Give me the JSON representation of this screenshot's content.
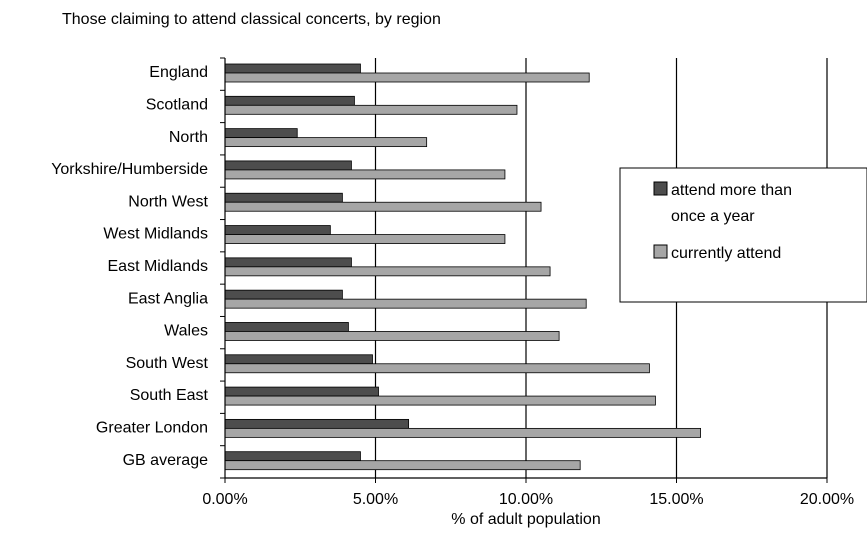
{
  "chart_data": {
    "type": "bar",
    "orientation": "horizontal",
    "title": "Those claiming to attend classical concerts, by region",
    "xlabel": "% of adult population",
    "ylabel": "",
    "xlim": [
      0,
      0.2
    ],
    "x_ticks": [
      0,
      0.05,
      0.1,
      0.15,
      0.2
    ],
    "x_tick_labels": [
      "0.00%",
      "5.00%",
      "10.00%",
      "15.00%",
      "20.00%"
    ],
    "grid": "vertical major gridlines",
    "legend_position": "right",
    "categories": [
      "England",
      "Scotland",
      "North",
      "Yorkshire/Humberside",
      "North West",
      "West Midlands",
      "East Midlands",
      "East Anglia",
      "Wales",
      "South West",
      "South East",
      "Greater London",
      "GB average"
    ],
    "series": [
      {
        "name": "attend more than once a year",
        "color": "#4d4d4d",
        "values": [
          0.045,
          0.043,
          0.024,
          0.042,
          0.039,
          0.035,
          0.042,
          0.039,
          0.041,
          0.049,
          0.051,
          0.061,
          0.045
        ]
      },
      {
        "name": "currently attend",
        "color": "#a6a6a6",
        "values": [
          0.121,
          0.097,
          0.067,
          0.093,
          0.105,
          0.093,
          0.108,
          0.12,
          0.111,
          0.141,
          0.143,
          0.158,
          0.118
        ]
      }
    ]
  }
}
